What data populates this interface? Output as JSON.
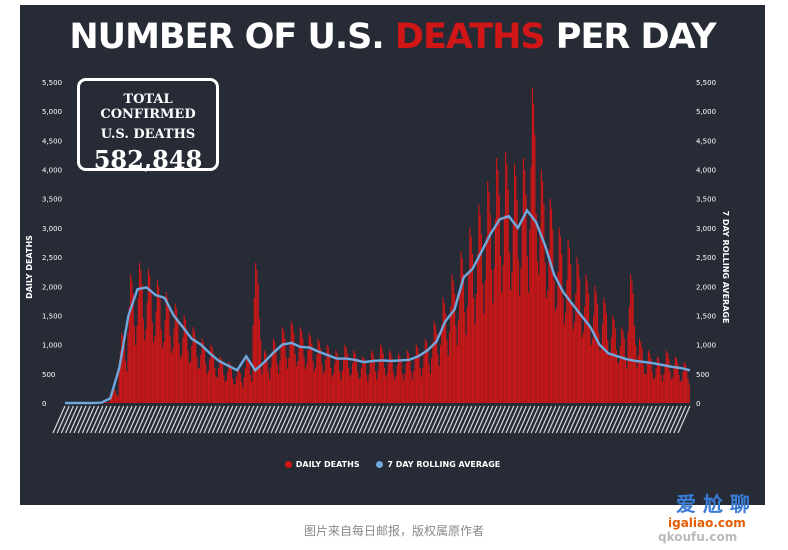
{
  "title": {
    "part1": "NUMBER OF U.S.",
    "part2": "DEATHS",
    "part3": "PER DAY"
  },
  "callout": {
    "line1": "TOTAL CONFIRMED",
    "line2": "U.S. DEATHS",
    "value": "582,848"
  },
  "legend": {
    "daily": "DAILY DEATHS",
    "rolling": "7 DAY ROLLING AVERAGE"
  },
  "caption": "图片来自每日邮报，版权属原作者",
  "watermark": {
    "line1": "爱 尬 聊",
    "line2": "igaliao.com",
    "line3": "qkoufu.com"
  },
  "colors": {
    "bars": "#d01616",
    "line": "#6fa8dc",
    "background": "#262b36",
    "accent": "#d01616"
  },
  "chart_data": {
    "type": "bar",
    "title": "NUMBER OF U.S. DEATHS PER DAY",
    "ylabel": "DAILY DEATHS",
    "y2label": "7 DAY ROLLING AVERAGE",
    "ylim": [
      0,
      5500
    ],
    "yticks": [
      0,
      500,
      1000,
      1500,
      2000,
      2500,
      3000,
      3500,
      4000,
      4500,
      5000,
      5500
    ],
    "ytick_labels": [
      "0",
      "500",
      "1,000",
      "1,500",
      "2,000",
      "2,500",
      "3,000",
      "3,500",
      "4,000",
      "4,500",
      "5,000",
      "5,500"
    ],
    "grid": false,
    "legend_position": "bottom",
    "series": [
      {
        "name": "DAILY DEATHS",
        "kind": "bars",
        "approx_weekly_peaks": [
          0,
          0,
          0,
          0,
          20,
          250,
          1200,
          2200,
          2400,
          2300,
          2100,
          1900,
          1700,
          1500,
          1300,
          1100,
          1000,
          800,
          700,
          600,
          800,
          2400,
          900,
          1100,
          1300,
          1400,
          1300,
          1200,
          1100,
          1000,
          900,
          1000,
          900,
          800,
          900,
          1000,
          900,
          850,
          900,
          1000,
          1100,
          1400,
          1800,
          2200,
          2600,
          3000,
          3400,
          3800,
          4200,
          4300,
          4100,
          4200,
          5400,
          4000,
          3500,
          3000,
          2800,
          2500,
          2200,
          2000,
          1800,
          1500,
          1300,
          2200,
          1100,
          900,
          800,
          900,
          800,
          700
        ]
      },
      {
        "name": "7 DAY ROLLING AVERAGE",
        "kind": "line",
        "values": [
          0,
          0,
          0,
          0,
          5,
          80,
          600,
          1500,
          1950,
          1980,
          1850,
          1800,
          1500,
          1300,
          1100,
          1000,
          850,
          720,
          640,
          560,
          800,
          560,
          700,
          860,
          1000,
          1030,
          960,
          950,
          880,
          820,
          760,
          760,
          740,
          700,
          720,
          730,
          720,
          730,
          740,
          800,
          900,
          1050,
          1400,
          1600,
          2150,
          2300,
          2600,
          2900,
          3150,
          3200,
          3000,
          3300,
          3100,
          2700,
          2200,
          1900,
          1700,
          1500,
          1300,
          1000,
          850,
          800,
          750,
          720,
          700,
          680,
          650,
          620,
          600,
          560
        ]
      }
    ]
  }
}
